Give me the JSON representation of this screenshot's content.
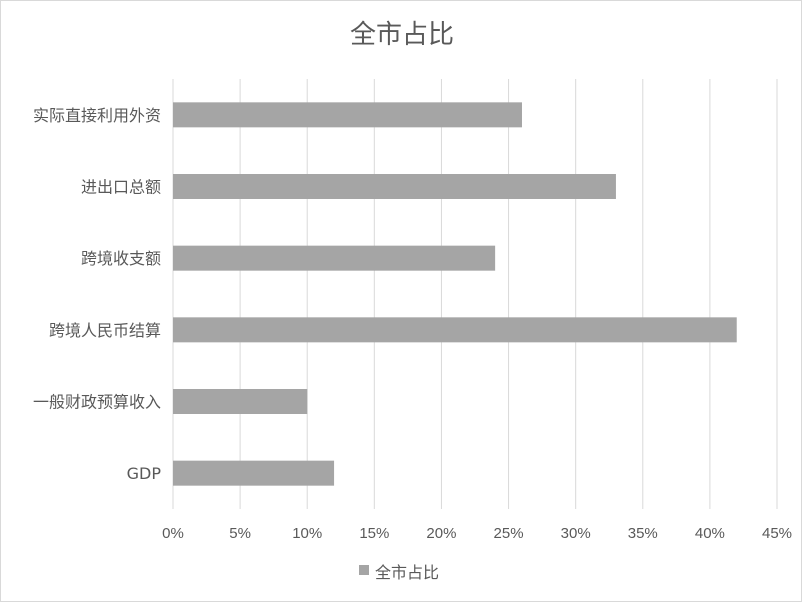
{
  "chart_data": {
    "type": "bar",
    "orientation": "horizontal",
    "title": "全市占比",
    "categories": [
      "实际直接利用外资",
      "进出口总额",
      "跨境收支额",
      "跨境人民币结算",
      "一般财政预算收入",
      "GDP"
    ],
    "series": [
      {
        "name": "全市占比",
        "values": [
          26,
          33,
          24,
          42,
          10,
          12
        ],
        "color": "#a5a5a5"
      }
    ],
    "xlim": [
      0,
      45
    ],
    "x_ticks": [
      "0%",
      "5%",
      "10%",
      "15%",
      "20%",
      "25%",
      "30%",
      "35%",
      "40%",
      "45%"
    ],
    "grid": true,
    "legend_position": "bottom"
  }
}
